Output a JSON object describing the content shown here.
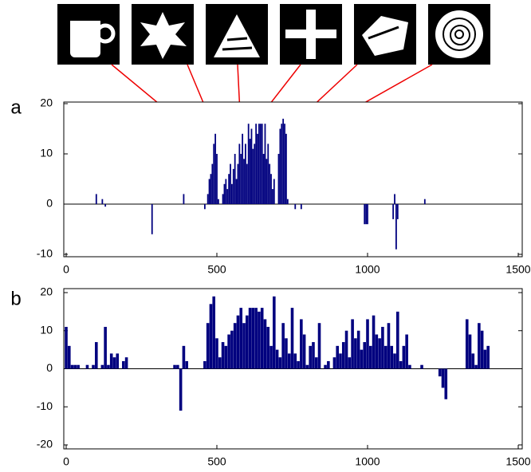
{
  "chart_data": [
    {
      "type": "bar",
      "label": "a",
      "color": "#00007f",
      "x": [
        100,
        120,
        130,
        285,
        390,
        460,
        470,
        475,
        480,
        485,
        490,
        495,
        500,
        505,
        520,
        525,
        530,
        535,
        540,
        545,
        550,
        555,
        560,
        565,
        570,
        575,
        580,
        585,
        590,
        595,
        600,
        605,
        610,
        615,
        620,
        625,
        630,
        635,
        640,
        645,
        650,
        655,
        660,
        665,
        670,
        675,
        680,
        685,
        690,
        705,
        710,
        715,
        720,
        725,
        730,
        735,
        760,
        780,
        990,
        995,
        1000,
        1085,
        1090,
        1095,
        1100,
        1190
      ],
      "values": [
        2,
        1,
        -0.5,
        -6,
        2,
        -1,
        2,
        5,
        6,
        8,
        12,
        14,
        10,
        1,
        2,
        4,
        5,
        3,
        6,
        8,
        4,
        7,
        10,
        5,
        8,
        12,
        10,
        14,
        9,
        12,
        8,
        16,
        13,
        15,
        11,
        12,
        16,
        14,
        16,
        16,
        16,
        10,
        16,
        9,
        12,
        8,
        6,
        3,
        5,
        10,
        15,
        16,
        17,
        16,
        14,
        1,
        -1,
        -1,
        -4,
        -4,
        -4,
        -3,
        2,
        -9,
        -3,
        1
      ],
      "xlim": [
        0,
        1500
      ],
      "xticks": [
        0,
        500,
        1000,
        1500
      ],
      "ylim": [
        -10,
        20
      ],
      "yticks": [
        -10,
        0,
        10,
        20
      ]
    },
    {
      "type": "bar",
      "label": "b",
      "color": "#00007f",
      "x": [
        0,
        10,
        20,
        30,
        40,
        50,
        60,
        70,
        80,
        90,
        100,
        110,
        120,
        130,
        140,
        150,
        160,
        170,
        180,
        190,
        200,
        210,
        220,
        230,
        240,
        250,
        260,
        270,
        280,
        290,
        300,
        310,
        320,
        330,
        340,
        350,
        360,
        370,
        380,
        390,
        400,
        410,
        420,
        430,
        440,
        450,
        460,
        470,
        480,
        490,
        500,
        510,
        520,
        530,
        540,
        550,
        560,
        570,
        580,
        590,
        600,
        610,
        620,
        630,
        640,
        650,
        660,
        670,
        680,
        690,
        700,
        710,
        720,
        730,
        740,
        750,
        760,
        770,
        780,
        790,
        800,
        810,
        820,
        830,
        840,
        850,
        860,
        870,
        880,
        890,
        900,
        910,
        920,
        930,
        940,
        950,
        960,
        970,
        980,
        990,
        1000,
        1010,
        1020,
        1030,
        1040,
        1050,
        1060,
        1070,
        1080,
        1090,
        1100,
        1110,
        1120,
        1130,
        1140,
        1150,
        1160,
        1170,
        1180,
        1190,
        1200,
        1210,
        1220,
        1230,
        1240,
        1250,
        1260,
        1270,
        1280,
        1290,
        1300,
        1310,
        1320,
        1330,
        1340,
        1350,
        1360,
        1370,
        1380,
        1390,
        1400,
        1410
      ],
      "values": [
        11,
        6,
        1,
        1,
        1,
        0,
        0,
        1,
        0,
        1,
        7,
        0,
        1,
        11,
        1,
        4,
        3,
        4,
        0,
        2,
        3,
        0,
        0,
        0,
        0,
        0,
        0,
        0,
        0,
        0,
        0,
        0,
        0,
        0,
        0,
        0,
        1,
        1,
        -11,
        6,
        2,
        0,
        0,
        0,
        0,
        0,
        2,
        12,
        17,
        19,
        8,
        3,
        7,
        6,
        9,
        10,
        12,
        14,
        16,
        12,
        14,
        16,
        16,
        16,
        15,
        16,
        13,
        11,
        6,
        19,
        5,
        3,
        12,
        8,
        4,
        16,
        4,
        2,
        13,
        9,
        1,
        6,
        7,
        3,
        12,
        0,
        1,
        2,
        0,
        3,
        6,
        4,
        7,
        10,
        3,
        13,
        8,
        10,
        5,
        7,
        13,
        6,
        14,
        9,
        8,
        11,
        6,
        12,
        6,
        4,
        15,
        2,
        6,
        9,
        1,
        0,
        0,
        0,
        1,
        0,
        0,
        0,
        0,
        0,
        -2,
        -5,
        -8,
        0,
        0,
        0,
        0,
        0,
        0,
        13,
        9,
        4,
        1,
        12,
        10,
        5,
        6,
        0
      ],
      "xlim": [
        0,
        1500
      ],
      "xticks": [
        0,
        500,
        1000,
        1500
      ],
      "ylim": [
        -20,
        20
      ],
      "yticks": [
        -20,
        -10,
        0,
        10,
        20
      ]
    }
  ]
}
